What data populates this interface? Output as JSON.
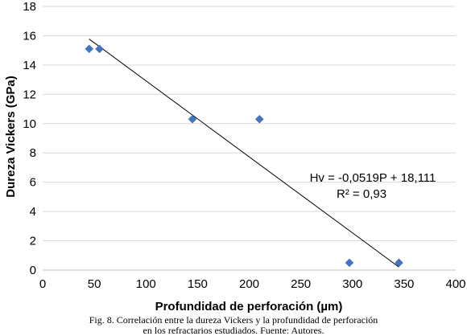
{
  "chart_data": {
    "type": "scatter",
    "title": "",
    "xlabel": "Profundidad de perforación (µm)",
    "ylabel": "Dureza Vickers (GPa)",
    "xlim": [
      0,
      400
    ],
    "ylim": [
      0,
      18
    ],
    "x_ticks": [
      "0",
      "50",
      "100",
      "150",
      "200",
      "250",
      "300",
      "350",
      "400"
    ],
    "y_ticks": [
      "0",
      "2",
      "4",
      "6",
      "8",
      "10",
      "12",
      "14",
      "16",
      "18"
    ],
    "grid": "horizontal",
    "marker_color": "#4472C4",
    "series": [
      {
        "points": [
          {
            "x": 45,
            "y": 15.1
          },
          {
            "x": 55,
            "y": 15.1
          },
          {
            "x": 145,
            "y": 10.3
          },
          {
            "x": 210,
            "y": 10.3
          },
          {
            "x": 297,
            "y": 0.5
          },
          {
            "x": 345,
            "y": 0.5
          }
        ]
      }
    ],
    "trendline": {
      "x_start": 45,
      "x_end": 345,
      "slope": -0.0519,
      "intercept": 18.111
    },
    "annotations": {
      "equation": "Hv = -0,0519P + 18,111",
      "r_squared": "R² = 0,93"
    }
  },
  "caption": {
    "line1": "Fig. 8. Correlación entre la dureza Vickers y la profundidad de perforación",
    "line2": "en los refractarios estudiados. Fuente: Autores."
  }
}
